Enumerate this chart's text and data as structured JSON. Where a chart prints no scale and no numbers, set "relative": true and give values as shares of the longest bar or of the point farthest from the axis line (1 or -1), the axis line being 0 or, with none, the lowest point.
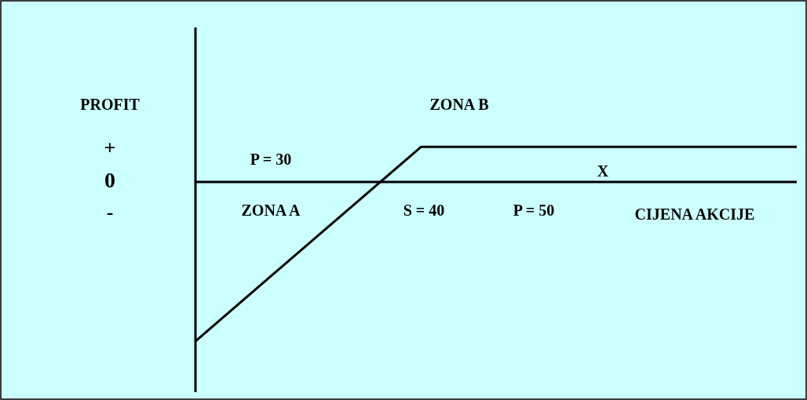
{
  "chart_data": {
    "type": "line",
    "relative": true,
    "categories": [
      null,
      null,
      null,
      null,
      null,
      null,
      null,
      null,
      null
    ],
    "series": [
      {
        "color": "#000000",
        "values": [
          -1,
          -0.593,
          -0.187,
          0.22,
          0.22,
          0.22,
          0.22,
          0.22,
          0.22
        ]
      }
    ],
    "marker": "none",
    "legend": false,
    "annotations": [
      "PROFIT",
      "+",
      "0",
      "-",
      "ZONA B",
      "P = 30",
      "ZONA A",
      "S = 40",
      "P = 50",
      "X",
      "CIJENA AKCIJE"
    ]
  }
}
